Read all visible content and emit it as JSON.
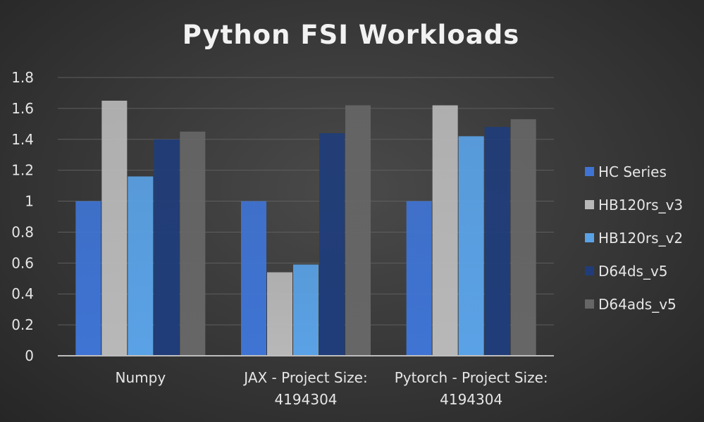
{
  "chart_data": {
    "type": "bar",
    "title": "Python FSI Workloads",
    "xlabel": "",
    "ylabel": "",
    "ylim": [
      0,
      1.8
    ],
    "yticks": [
      "0",
      "0.2",
      "0.4",
      "0.6",
      "0.8",
      "1",
      "1.2",
      "1.4",
      "1.6",
      "1.8"
    ],
    "grid": true,
    "legend_position": "right",
    "categories": [
      [
        "Numpy"
      ],
      [
        "JAX - Project Size:",
        "4194304"
      ],
      [
        "Pytorch - Project Size:",
        "4194304"
      ]
    ],
    "series": [
      {
        "name": "HC Series",
        "color": "#3f74d4",
        "values": [
          1.0,
          1.0,
          1.0
        ]
      },
      {
        "name": "HB120rs_v3",
        "color": "#b8b8b8",
        "values": [
          1.65,
          0.54,
          1.62
        ]
      },
      {
        "name": "HB120rs_v2",
        "color": "#5aa2e6",
        "values": [
          1.16,
          0.59,
          1.42
        ]
      },
      {
        "name": "D64ds_v5",
        "color": "#203d7a",
        "values": [
          1.4,
          1.44,
          1.48
        ]
      },
      {
        "name": "D64ads_v5",
        "color": "#666666",
        "values": [
          1.45,
          1.62,
          1.53
        ]
      }
    ]
  }
}
